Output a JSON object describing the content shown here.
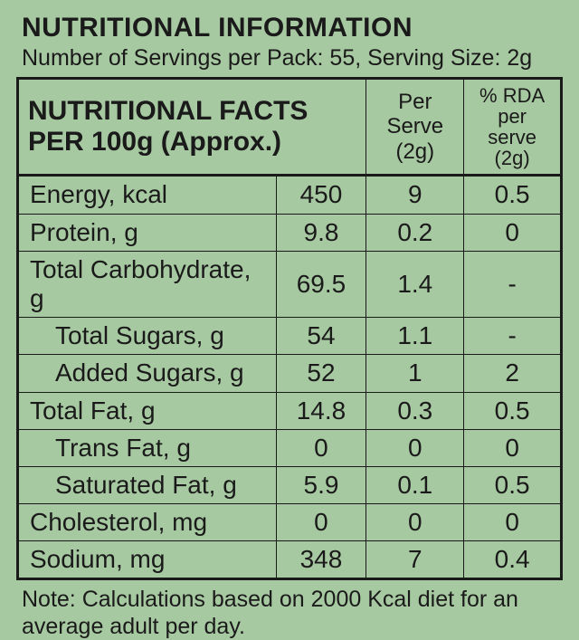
{
  "title": "NUTRITIONAL INFORMATION",
  "subtitle": "Number of Servings per Pack: 55, Serving Size: 2g",
  "header": {
    "main_line1": "NUTRITIONAL FACTS",
    "main_line2": "PER 100g (Approx.)",
    "col1_line1": "Per Serve",
    "col1_line2": "(2g)",
    "col2_line1": "% RDA per",
    "col2_line2": "serve (2g)"
  },
  "rows": [
    {
      "label": "Energy, kcal",
      "indent": false,
      "per100": "450",
      "perServe": "9",
      "rda": "0.5"
    },
    {
      "label": "Protein, g",
      "indent": false,
      "per100": "9.8",
      "perServe": "0.2",
      "rda": "0"
    },
    {
      "label": "Total Carbohydrate, g",
      "indent": false,
      "per100": "69.5",
      "perServe": "1.4",
      "rda": "-"
    },
    {
      "label": "Total Sugars, g",
      "indent": true,
      "per100": "54",
      "perServe": "1.1",
      "rda": "-"
    },
    {
      "label": "Added Sugars, g",
      "indent": true,
      "per100": "52",
      "perServe": "1",
      "rda": "2"
    },
    {
      "label": "Total Fat, g",
      "indent": false,
      "per100": "14.8",
      "perServe": "0.3",
      "rda": "0.5"
    },
    {
      "label": "Trans Fat, g",
      "indent": true,
      "per100": "0",
      "perServe": "0",
      "rda": "0"
    },
    {
      "label": "Saturated Fat, g",
      "indent": true,
      "per100": "5.9",
      "perServe": "0.1",
      "rda": "0.5"
    },
    {
      "label": "Cholesterol, mg",
      "indent": false,
      "per100": "0",
      "perServe": "0",
      "rda": "0"
    },
    {
      "label": "Sodium, mg",
      "indent": false,
      "per100": "348",
      "perServe": "7",
      "rda": "0.4"
    }
  ],
  "note": "Note: Calculations based on 2000 Kcal diet for an average adult per day.",
  "colors": {
    "background": "#a7c9a1",
    "text": "#1a1a1a",
    "border": "#1a1a1a"
  }
}
